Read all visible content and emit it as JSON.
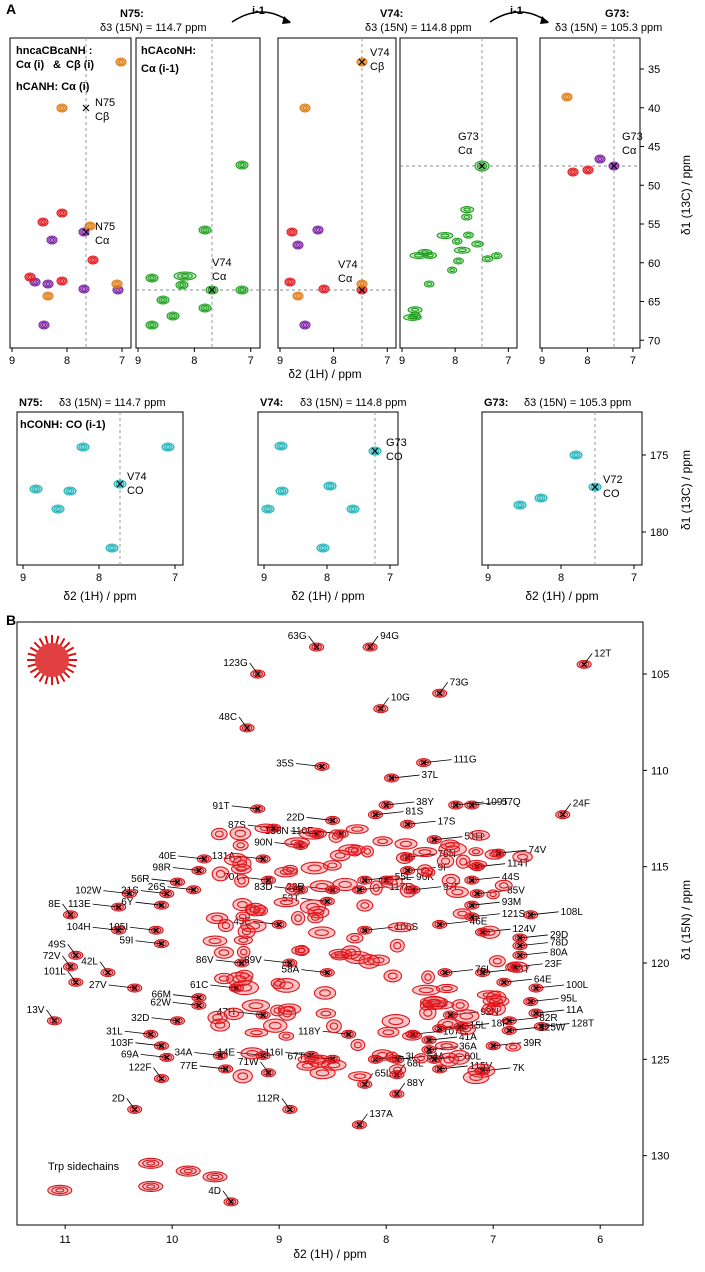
{
  "chart_data": [
    {
      "id": "panelA_top",
      "type": "scatter",
      "panel_label": "A",
      "description_texts": {
        "n75_title": "N75:",
        "n75_shift": "δ3 (15N) = 114.7 ppm",
        "v74_title": "V74:",
        "v74_shift": "δ3 (15N) = 114.8 ppm",
        "g73_title": "G73:",
        "g73_shift": "δ3 (15N) = 105.3 ppm",
        "arrow1": "i-1",
        "arrow2": "i-1"
      },
      "legend": {
        "hncacbcanh": "hncaCBcaNH :",
        "ca_i": "Cα (i)",
        "amp": "&",
        "cb_i": "Cβ (i)",
        "hcanh": "hCANH: Cα (i)",
        "hcaconh": "hCAcoNH:",
        "ca_i1": "Cα (i-1)"
      },
      "xlabel": "δ2 (1H) / ppm",
      "ylabel": "δ1 (13C) / ppm",
      "xlim": [
        9,
        7
      ],
      "ylim": [
        71,
        31
      ],
      "yticks": [
        35,
        40,
        45,
        50,
        55,
        60,
        65,
        70
      ],
      "xticks": [
        9,
        8,
        7
      ],
      "annotations": [
        {
          "strip": 0,
          "text": "N75",
          "sub": "Cβ",
          "x": 7.65,
          "y": 39.2
        },
        {
          "strip": 0,
          "text": "N75",
          "sub": "Cα",
          "x": 7.65,
          "y": 55.0
        },
        {
          "strip": 1,
          "text": "V74",
          "sub": "Cα",
          "x": 7.65,
          "y": 63.0
        },
        {
          "strip": 2,
          "text": "V74",
          "sub": "Cβ",
          "x": 7.0,
          "y": 32.8
        },
        {
          "strip": 2,
          "text": "V74",
          "sub": "Cα",
          "x": 7.0,
          "y": 63.0
        },
        {
          "strip": 3,
          "text": "G73",
          "sub": "Cα",
          "x": 7.0,
          "y": 46.5
        },
        {
          "strip": 4,
          "text": "G73",
          "sub": "Cα",
          "x": 7.55,
          "y": 46.5
        }
      ],
      "colors": {
        "purple": "#7a1fa2",
        "orange": "#e07a10",
        "red": "#e3151b",
        "green": "#1ea01e",
        "cyan": "#1fb3b8"
      }
    },
    {
      "id": "panelA_bottom",
      "type": "scatter",
      "strips": [
        {
          "title": "N75:",
          "shift": "δ3 (15N) = 114.7 ppm"
        },
        {
          "title": "V74:",
          "shift": "δ3 (15N) = 114.8 ppm"
        },
        {
          "title": "G73:",
          "shift": "δ3 (15N) = 105.3 ppm"
        }
      ],
      "legend": "hCONH: CO (i-1)",
      "xlabel": "δ2 (1H) / ppm",
      "ylabel": "δ1 (13C) / ppm",
      "xlim": [
        9,
        7
      ],
      "ylim": [
        182.5,
        172.5
      ],
      "yticks": [
        175,
        180
      ],
      "annotations": [
        {
          "strip": 0,
          "text": "V74",
          "sub": "CO",
          "x": 7.65,
          "y": 176.8
        },
        {
          "strip": 1,
          "text": "G73",
          "sub": "CO",
          "x": 6.95,
          "y": 174.6
        },
        {
          "strip": 2,
          "text": "V72",
          "sub": "CO",
          "x": 7.5,
          "y": 177.0
        }
      ]
    },
    {
      "id": "panelB",
      "type": "scatter",
      "panel_label": "B",
      "xlabel": "δ2 (1H) / ppm",
      "ylabel": "δ1 (15N) / ppm",
      "xlim": [
        11.45,
        5.6
      ],
      "ylim": [
        133.6,
        102.3
      ],
      "xticks": [
        11,
        10,
        9,
        8,
        7,
        6
      ],
      "yticks": [
        105,
        110,
        115,
        120,
        125,
        130
      ],
      "trp_label": "Trp sidechains",
      "labels": [
        {
          "t": "63G",
          "x": 8.65,
          "y": 103.6
        },
        {
          "t": "94G",
          "x": 8.15,
          "y": 103.6
        },
        {
          "t": "12T",
          "x": 6.15,
          "y": 104.5
        },
        {
          "t": "123G",
          "x": 9.2,
          "y": 105.0
        },
        {
          "t": "73G",
          "x": 7.5,
          "y": 106.0
        },
        {
          "t": "10G",
          "x": 8.05,
          "y": 106.8
        },
        {
          "t": "48C",
          "x": 9.3,
          "y": 107.8
        },
        {
          "t": "35S",
          "x": 8.6,
          "y": 109.8
        },
        {
          "t": "111G",
          "x": 7.65,
          "y": 109.6
        },
        {
          "t": "37L",
          "x": 7.95,
          "y": 110.4
        },
        {
          "t": "91T",
          "x": 9.2,
          "y": 112.0
        },
        {
          "t": "38Y",
          "x": 8.0,
          "y": 111.8
        },
        {
          "t": "109T",
          "x": 7.35,
          "y": 111.8
        },
        {
          "t": "57Q",
          "x": 7.2,
          "y": 111.8
        },
        {
          "t": "24F",
          "x": 6.35,
          "y": 112.3
        },
        {
          "t": "22D",
          "x": 8.5,
          "y": 112.6
        },
        {
          "t": "81S",
          "x": 8.1,
          "y": 112.3
        },
        {
          "t": "17S",
          "x": 7.8,
          "y": 112.8
        },
        {
          "t": "87S",
          "x": 9.05,
          "y": 113.0
        },
        {
          "t": "136N",
          "x": 8.65,
          "y": 113.3
        },
        {
          "t": "110F",
          "x": 8.42,
          "y": 113.3
        },
        {
          "t": "90N",
          "x": 8.8,
          "y": 113.9
        },
        {
          "t": "51H",
          "x": 7.55,
          "y": 113.6
        },
        {
          "t": "40E",
          "x": 9.7,
          "y": 114.6
        },
        {
          "t": "131A",
          "x": 9.15,
          "y": 114.6
        },
        {
          "t": "75N",
          "x": 7.8,
          "y": 114.5
        },
        {
          "t": "74V",
          "x": 6.95,
          "y": 114.3
        },
        {
          "t": "98R",
          "x": 9.75,
          "y": 115.2
        },
        {
          "t": "9F",
          "x": 7.8,
          "y": 115.2
        },
        {
          "t": "70T",
          "x": 9.1,
          "y": 115.7
        },
        {
          "t": "83D",
          "x": 8.8,
          "y": 116.2
        },
        {
          "t": "55L",
          "x": 8.2,
          "y": 115.7
        },
        {
          "t": "96K",
          "x": 8.0,
          "y": 115.7
        },
        {
          "t": "44S",
          "x": 7.2,
          "y": 115.7
        },
        {
          "t": "56R",
          "x": 9.95,
          "y": 115.8
        },
        {
          "t": "28R",
          "x": 8.5,
          "y": 116.2
        },
        {
          "t": "117E",
          "x": 8.25,
          "y": 116.2
        },
        {
          "t": "97F",
          "x": 7.75,
          "y": 116.2
        },
        {
          "t": "85V",
          "x": 7.15,
          "y": 116.4
        },
        {
          "t": "102W",
          "x": 10.4,
          "y": 116.4
        },
        {
          "t": "21S",
          "x": 10.05,
          "y": 116.4
        },
        {
          "t": "26S",
          "x": 9.8,
          "y": 116.2
        },
        {
          "t": "53T",
          "x": 8.55,
          "y": 116.8
        },
        {
          "t": "93M",
          "x": 7.2,
          "y": 117.0
        },
        {
          "t": "6Y",
          "x": 10.1,
          "y": 117.0
        },
        {
          "t": "121S",
          "x": 7.2,
          "y": 117.6
        },
        {
          "t": "8E",
          "x": 10.95,
          "y": 117.5
        },
        {
          "t": "113E",
          "x": 10.5,
          "y": 117.1
        },
        {
          "t": "114T",
          "x": 7.15,
          "y": 115.0
        },
        {
          "t": "108L",
          "x": 6.65,
          "y": 117.5
        },
        {
          "t": "43E",
          "x": 9.0,
          "y": 118.0
        },
        {
          "t": "46E",
          "x": 7.5,
          "y": 118.0
        },
        {
          "t": "104H",
          "x": 10.5,
          "y": 118.3
        },
        {
          "t": "105I",
          "x": 10.15,
          "y": 118.3
        },
        {
          "t": "106S",
          "x": 8.2,
          "y": 118.3
        },
        {
          "t": "124V",
          "x": 7.1,
          "y": 118.4
        },
        {
          "t": "59I",
          "x": 10.1,
          "y": 119.0
        },
        {
          "t": "29D",
          "x": 6.75,
          "y": 118.7
        },
        {
          "t": "78D",
          "x": 6.75,
          "y": 119.1
        },
        {
          "t": "49S",
          "x": 10.9,
          "y": 119.6
        },
        {
          "t": "80A",
          "x": 6.75,
          "y": 119.6
        },
        {
          "t": "72V",
          "x": 10.95,
          "y": 120.2
        },
        {
          "t": "86V",
          "x": 9.35,
          "y": 120.0
        },
        {
          "t": "89V",
          "x": 8.9,
          "y": 120.0
        },
        {
          "t": "23F",
          "x": 6.8,
          "y": 120.2
        },
        {
          "t": "42L",
          "x": 10.6,
          "y": 120.5
        },
        {
          "t": "58A",
          "x": 8.55,
          "y": 120.5
        },
        {
          "t": "76L",
          "x": 7.45,
          "y": 120.5
        },
        {
          "t": "33T",
          "x": 7.1,
          "y": 120.5
        },
        {
          "t": "101L",
          "x": 10.9,
          "y": 121.0
        },
        {
          "t": "61C",
          "x": 9.4,
          "y": 121.3
        },
        {
          "t": "27V",
          "x": 10.35,
          "y": 121.3
        },
        {
          "t": "100L",
          "x": 6.6,
          "y": 121.3
        },
        {
          "t": "66M",
          "x": 9.75,
          "y": 121.8
        },
        {
          "t": "64E",
          "x": 6.9,
          "y": 121.0
        },
        {
          "t": "95L",
          "x": 6.65,
          "y": 122.0
        },
        {
          "t": "62W",
          "x": 9.75,
          "y": 122.2
        },
        {
          "t": "47H",
          "x": 9.15,
          "y": 122.7
        },
        {
          "t": "11A",
          "x": 6.6,
          "y": 122.6
        },
        {
          "t": "32D",
          "x": 9.95,
          "y": 123.0
        },
        {
          "t": "82R",
          "x": 6.85,
          "y": 123.0
        },
        {
          "t": "92N",
          "x": 7.4,
          "y": 122.7
        },
        {
          "t": "18F",
          "x": 7.3,
          "y": 123.3
        },
        {
          "t": "128T",
          "x": 6.55,
          "y": 123.3
        },
        {
          "t": "31L",
          "x": 10.2,
          "y": 123.7
        },
        {
          "t": "125W",
          "x": 6.85,
          "y": 123.5
        },
        {
          "t": "15L",
          "x": 7.5,
          "y": 123.4
        },
        {
          "t": "118Y",
          "x": 8.35,
          "y": 123.7
        },
        {
          "t": "107C",
          "x": 7.75,
          "y": 123.7
        },
        {
          "t": "41A",
          "x": 7.6,
          "y": 124.0
        },
        {
          "t": "39R",
          "x": 7.0,
          "y": 124.3
        },
        {
          "t": "103F",
          "x": 10.1,
          "y": 124.3
        },
        {
          "t": "36A",
          "x": 7.6,
          "y": 124.5
        },
        {
          "t": "34A",
          "x": 9.55,
          "y": 124.8
        },
        {
          "t": "14E",
          "x": 9.15,
          "y": 124.8
        },
        {
          "t": "116I",
          "x": 8.7,
          "y": 124.8
        },
        {
          "t": "69A",
          "x": 10.05,
          "y": 124.9
        },
        {
          "t": "3I",
          "x": 8.1,
          "y": 125.0
        },
        {
          "t": "54A",
          "x": 7.9,
          "y": 125.0
        },
        {
          "t": "60L",
          "x": 7.55,
          "y": 125.0
        },
        {
          "t": "67T",
          "x": 8.5,
          "y": 125.0
        },
        {
          "t": "77E",
          "x": 9.5,
          "y": 125.5
        },
        {
          "t": "115V",
          "x": 7.5,
          "y": 125.5
        },
        {
          "t": "68L",
          "x": 7.9,
          "y": 125.8
        },
        {
          "t": "13V",
          "x": 11.1,
          "y": 123.0
        },
        {
          "t": "65L",
          "x": 8.2,
          "y": 126.3
        },
        {
          "t": "88Y",
          "x": 7.9,
          "y": 126.8
        },
        {
          "t": "7K",
          "x": 7.1,
          "y": 125.6
        },
        {
          "t": "71W",
          "x": 9.1,
          "y": 125.7
        },
        {
          "t": "122F",
          "x": 10.1,
          "y": 126.0
        },
        {
          "t": "112R",
          "x": 8.9,
          "y": 127.6
        },
        {
          "t": "2D",
          "x": 10.35,
          "y": 127.6
        },
        {
          "t": "137A",
          "x": 8.25,
          "y": 128.4
        },
        {
          "t": "4D",
          "x": 9.45,
          "y": 132.4
        }
      ]
    }
  ]
}
